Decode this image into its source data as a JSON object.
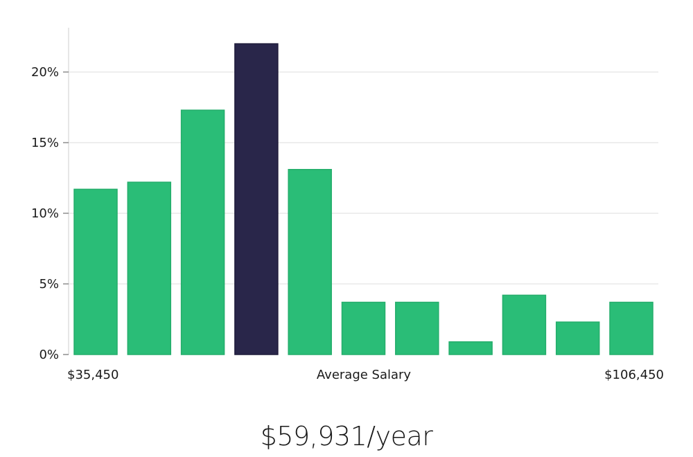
{
  "chart_data": {
    "type": "bar",
    "title": "",
    "xlabel": "Average Salary",
    "ylabel": "",
    "x_range_labels": {
      "min": "$35,450",
      "max": "$106,450"
    },
    "values": [
      11.7,
      12.2,
      17.3,
      22.0,
      13.1,
      3.7,
      3.7,
      0.9,
      4.2,
      2.3,
      3.7
    ],
    "highlight_index": 3,
    "ylim": [
      0,
      23
    ],
    "yticks": [
      0,
      5,
      10,
      15,
      20
    ],
    "ytick_labels": [
      "0%",
      "5%",
      "10%",
      "15%",
      "20%"
    ],
    "grid": true,
    "colors": {
      "bar": "#2abd77",
      "bar_stroke": "#24ad6b",
      "highlight": "#29264a",
      "grid": "#dddddd",
      "axis": "#cccccc"
    }
  },
  "summary": {
    "salary_text": "$59,931/year"
  }
}
